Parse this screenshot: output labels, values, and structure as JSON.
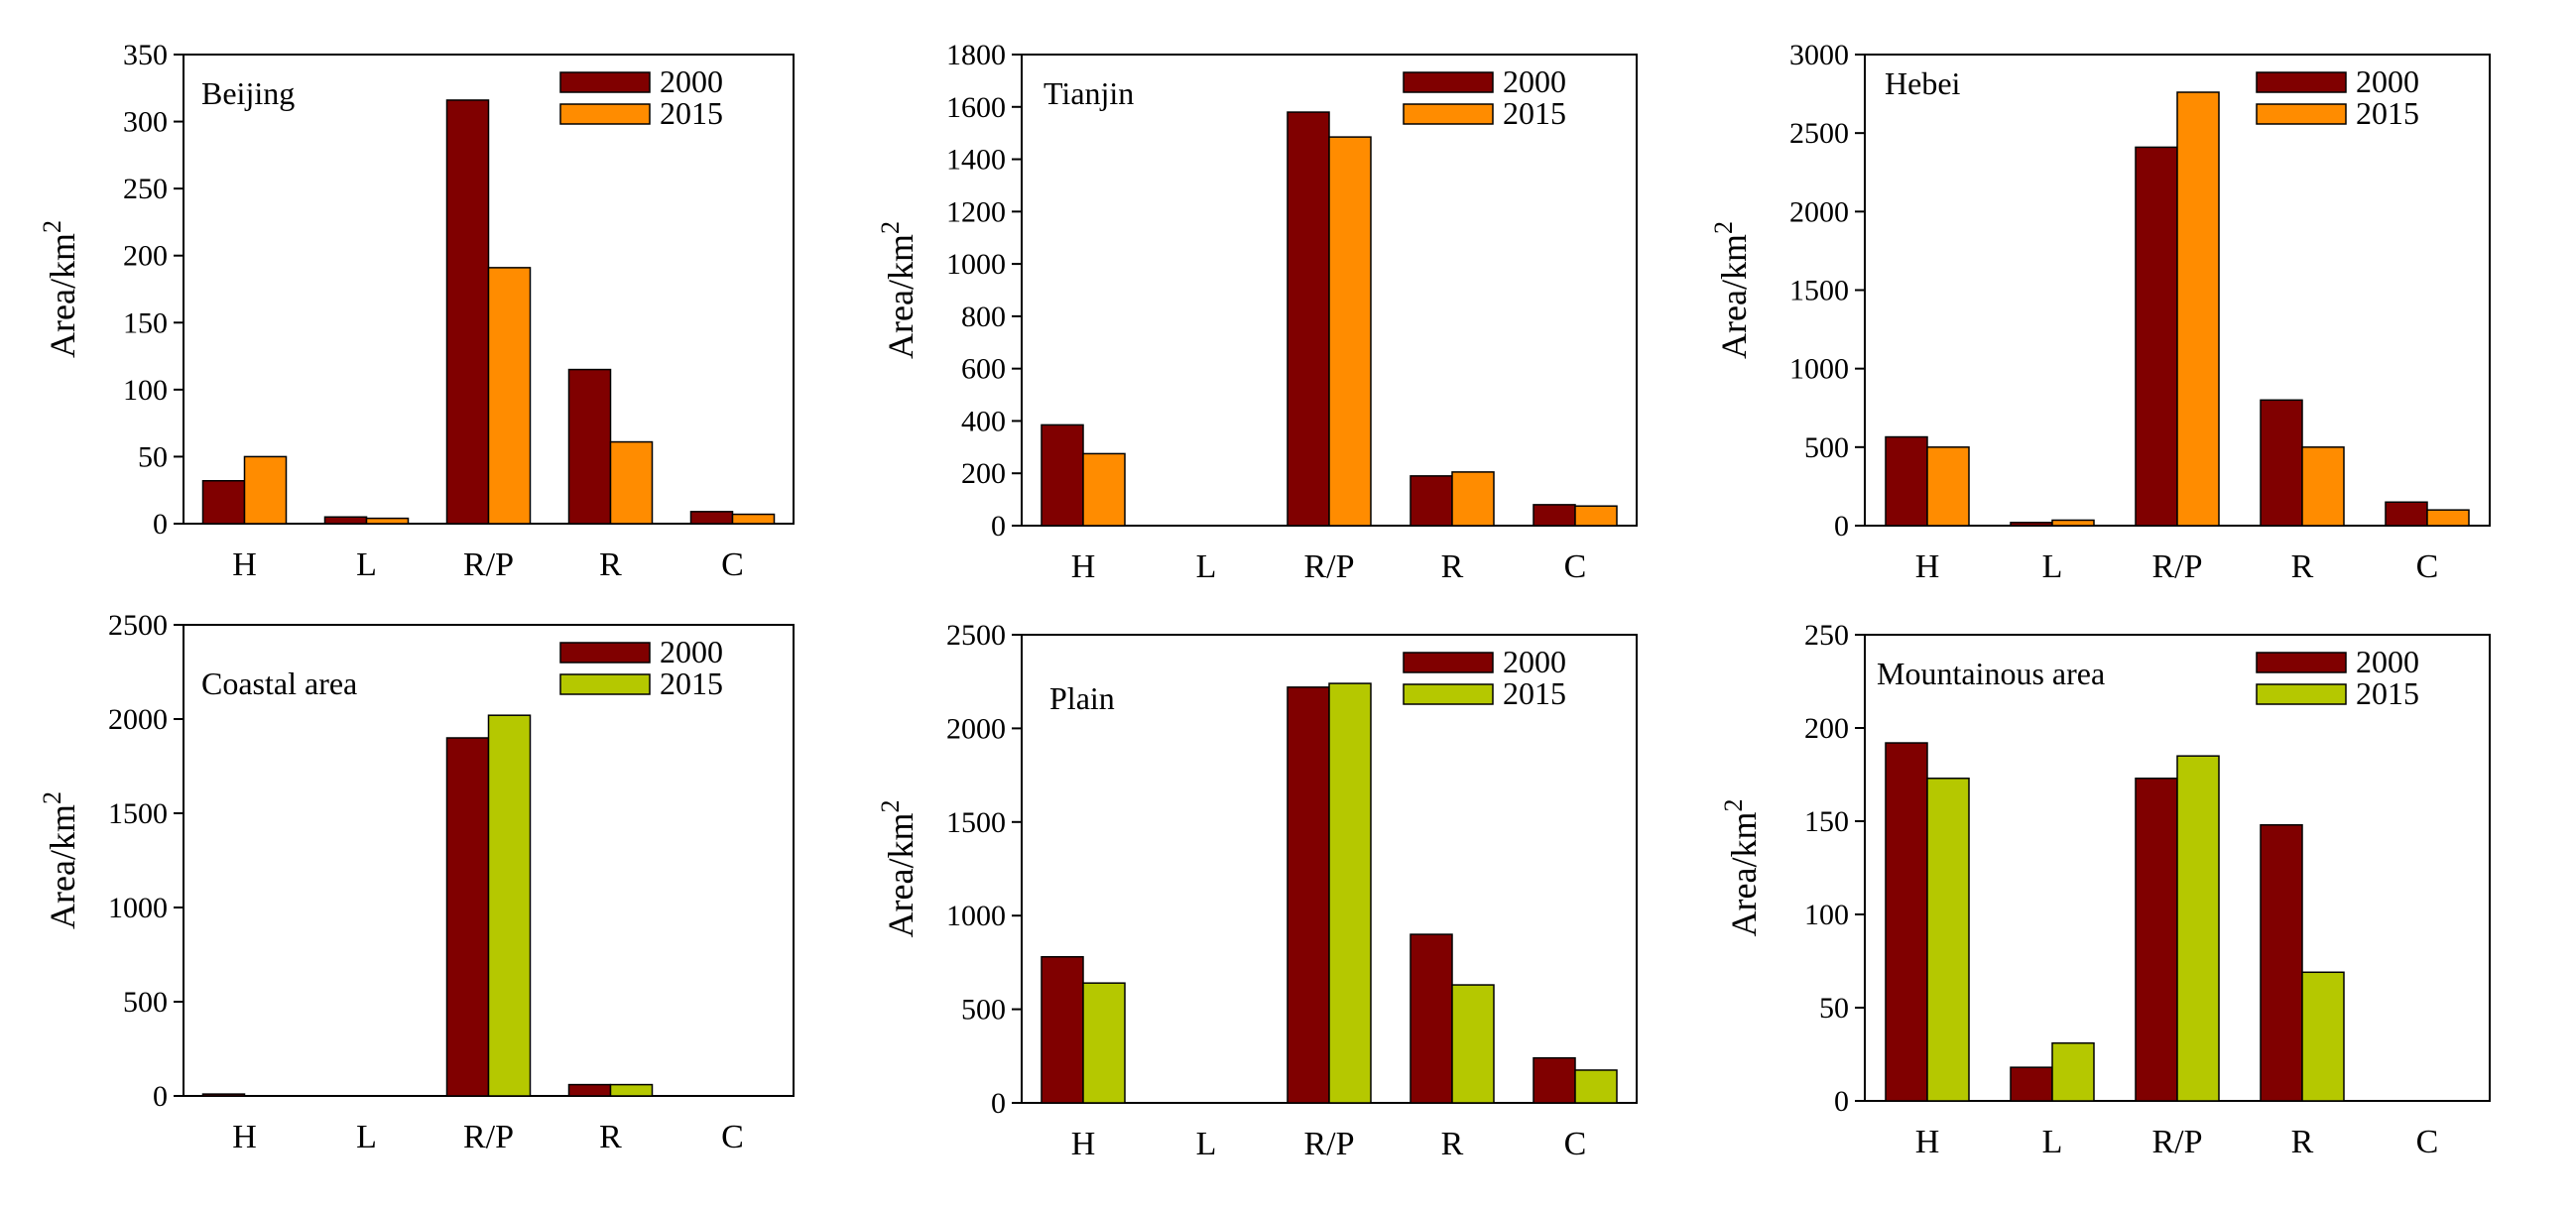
{
  "colors": {
    "s2000": "#800000",
    "s2015_orange": "#ff8c00",
    "s2015_green": "#b5c800",
    "axis": "#000000"
  },
  "chart_data": [
    {
      "type": "bar",
      "title": "Beijing",
      "ylabel": "Area/km2",
      "categories": [
        "H",
        "L",
        "R/P",
        "R",
        "C"
      ],
      "ylim": [
        0,
        350
      ],
      "yticks": [
        0,
        50,
        100,
        150,
        200,
        250,
        300,
        350
      ],
      "legend_position": "top-right",
      "series": [
        {
          "name": "2000",
          "color": "#800000",
          "values": [
            32,
            5,
            316,
            115,
            9
          ]
        },
        {
          "name": "2015",
          "color": "#ff8c00",
          "values": [
            50,
            4,
            191,
            61,
            7
          ]
        }
      ]
    },
    {
      "type": "bar",
      "title": "Tianjin",
      "ylabel": "Area/km2",
      "categories": [
        "H",
        "L",
        "R/P",
        "R",
        "C"
      ],
      "ylim": [
        0,
        1800
      ],
      "yticks": [
        0,
        200,
        400,
        600,
        800,
        1000,
        1200,
        1400,
        1600,
        1800
      ],
      "legend_position": "top-right",
      "series": [
        {
          "name": "2000",
          "color": "#800000",
          "values": [
            385,
            0,
            1580,
            190,
            80
          ]
        },
        {
          "name": "2015",
          "color": "#ff8c00",
          "values": [
            275,
            0,
            1485,
            205,
            75
          ]
        }
      ]
    },
    {
      "type": "bar",
      "title": "Hebei",
      "ylabel": "Area/km2",
      "categories": [
        "H",
        "L",
        "R/P",
        "R",
        "C"
      ],
      "ylim": [
        0,
        3000
      ],
      "yticks": [
        0,
        500,
        1000,
        1500,
        2000,
        2500,
        3000
      ],
      "legend_position": "top-right",
      "series": [
        {
          "name": "2000",
          "color": "#800000",
          "values": [
            565,
            20,
            2410,
            800,
            150
          ]
        },
        {
          "name": "2015",
          "color": "#ff8c00",
          "values": [
            500,
            35,
            2760,
            500,
            100
          ]
        }
      ]
    },
    {
      "type": "bar",
      "title": "Coastal area",
      "ylabel": "Area/km2",
      "categories": [
        "H",
        "L",
        "R/P",
        "R",
        "C"
      ],
      "ylim": [
        0,
        2500
      ],
      "yticks": [
        0,
        500,
        1000,
        1500,
        2000,
        2500
      ],
      "legend_position": "top-right",
      "series": [
        {
          "name": "2000",
          "color": "#800000",
          "values": [
            10,
            0,
            1900,
            60,
            0
          ]
        },
        {
          "name": "2015",
          "color": "#b5c800",
          "values": [
            0,
            0,
            2020,
            60,
            0
          ]
        }
      ]
    },
    {
      "type": "bar",
      "title": "Plain",
      "ylabel": "Area/km2",
      "categories": [
        "H",
        "L",
        "R/P",
        "R",
        "C"
      ],
      "ylim": [
        0,
        2500
      ],
      "yticks": [
        0,
        500,
        1000,
        1500,
        2000,
        2500
      ],
      "legend_position": "top-right",
      "series": [
        {
          "name": "2000",
          "color": "#800000",
          "values": [
            780,
            0,
            2220,
            900,
            240
          ]
        },
        {
          "name": "2015",
          "color": "#b5c800",
          "values": [
            640,
            0,
            2240,
            630,
            175
          ]
        }
      ]
    },
    {
      "type": "bar",
      "title": "Mountainous area",
      "ylabel": "Area/km2",
      "categories": [
        "H",
        "L",
        "R/P",
        "R",
        "C"
      ],
      "ylim": [
        0,
        250
      ],
      "yticks": [
        0,
        50,
        100,
        150,
        200,
        250
      ],
      "legend_position": "top-right",
      "series": [
        {
          "name": "2000",
          "color": "#800000",
          "values": [
            192,
            18,
            173,
            148,
            0
          ]
        },
        {
          "name": "2015",
          "color": "#b5c800",
          "values": [
            173,
            31,
            185,
            69,
            0
          ]
        }
      ]
    }
  ]
}
